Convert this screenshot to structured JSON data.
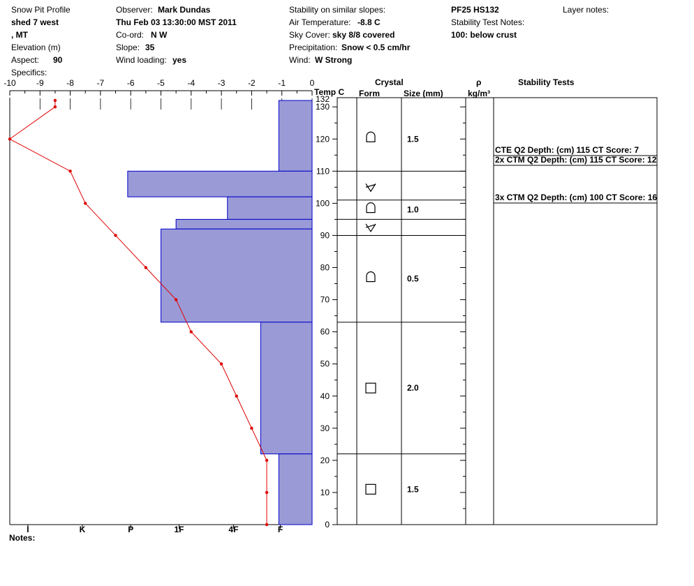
{
  "header": {
    "title": "Snow Pit Profile",
    "location_line1": "shed 7 west",
    "location_line2": ", MT",
    "elevation_label": "Elevation (m)",
    "aspect_label": "Aspect:",
    "aspect_value": "90",
    "specifics_label": "Specifics:",
    "observer_label": "Observer:",
    "observer_value": "Mark Dundas",
    "datetime": "Thu Feb 03 13:30:00 MST 2011",
    "coord_label": "Co-ord:",
    "coord_value": "N  W",
    "slope_label": "Slope:",
    "slope_value": "35",
    "wind_loading_label": "Wind loading:",
    "wind_loading_value": "yes",
    "stability_similar_label": "Stability on similar slopes:",
    "air_temp_label": "Air Temperature:",
    "air_temp_value": "-8.8 C",
    "sky_label": "Sky Cover:",
    "sky_value": "sky 8/8 covered",
    "precip_label": "Precipitation:",
    "precip_value": "Snow < 0.5 cm/hr",
    "wind_label": "Wind:",
    "wind_value": "W Strong",
    "pit_id": "PF25 HS132",
    "stability_notes_label": "Stability Test Notes:",
    "stability_note": "100: below crust",
    "layer_notes_label": "Layer notes:"
  },
  "columns": {
    "temp": "Temp C",
    "crystal": "Crystal",
    "form": "Form",
    "size": "Size (mm)",
    "rho": "ρ",
    "density_unit": "kg/m³",
    "stability_tests": "Stability Tests"
  },
  "notes_label": "Notes:",
  "colors": {
    "hardness_fill": "#9a9ad6",
    "hardness_stroke": "#0000cc",
    "temp_line": "#e00000"
  },
  "chart_data": {
    "type": "snow-profile",
    "temp_axis": {
      "ticks": [
        "-10",
        "-9",
        "-8",
        "-7",
        "-6",
        "-5",
        "-4",
        "-3",
        "-2",
        "-1",
        "0"
      ],
      "range": [
        -10,
        0
      ]
    },
    "depth_axis": {
      "range": [
        0,
        132
      ],
      "tick_labels": [
        "0",
        "10",
        "20",
        "30",
        "40",
        "50",
        "60",
        "70",
        "80",
        "90",
        "100",
        "110",
        "120",
        "130",
        "132"
      ]
    },
    "hardness_axis": {
      "labels": [
        "I",
        "K",
        "P",
        "1F",
        "4F",
        "F"
      ]
    },
    "temperature_profile": [
      {
        "depth": 132,
        "temp": -8.5
      },
      {
        "depth": 130,
        "temp": -8.5
      },
      {
        "depth": 120,
        "temp": -10
      },
      {
        "depth": 110,
        "temp": -8
      },
      {
        "depth": 100,
        "temp": -7.5
      },
      {
        "depth": 90,
        "temp": -6.5
      },
      {
        "depth": 80,
        "temp": -5.5
      },
      {
        "depth": 70,
        "temp": -4.5
      },
      {
        "depth": 60,
        "temp": -4
      },
      {
        "depth": 50,
        "temp": -3
      },
      {
        "depth": 40,
        "temp": -2.5
      },
      {
        "depth": 30,
        "temp": -2
      },
      {
        "depth": 20,
        "temp": -1.5
      },
      {
        "depth": 10,
        "temp": -1.5
      },
      {
        "depth": 0,
        "temp": -1.5
      }
    ],
    "hardness_layers": [
      {
        "bottom": 110,
        "top": 132,
        "temp_extent": -1.1
      },
      {
        "bottom": 102,
        "top": 110,
        "temp_extent": -6.1
      },
      {
        "bottom": 95,
        "top": 102,
        "temp_extent": -2.8
      },
      {
        "bottom": 92,
        "top": 95,
        "temp_extent": -4.5
      },
      {
        "bottom": 63,
        "top": 92,
        "temp_extent": -5.0
      },
      {
        "bottom": 22,
        "top": 63,
        "temp_extent": -1.7
      },
      {
        "bottom": 0,
        "top": 22,
        "temp_extent": -1.1
      }
    ],
    "crystal_boundaries": [
      110,
      101,
      95,
      90,
      63,
      22
    ],
    "crystal_layers": [
      {
        "depth": 120,
        "form": "rounded-grains",
        "size": "1.5"
      },
      {
        "depth": 105,
        "form": "surface-hoar",
        "size": ""
      },
      {
        "depth": 98,
        "form": "rounded-grains",
        "size": "1.0"
      },
      {
        "depth": 92.5,
        "form": "surface-hoar",
        "size": ""
      },
      {
        "depth": 76.5,
        "form": "rounded-grains",
        "size": "0.5"
      },
      {
        "depth": 42.5,
        "form": "faceted-crystals",
        "size": "2.0"
      },
      {
        "depth": 11,
        "form": "faceted-crystals",
        "size": "1.5"
      }
    ],
    "stability_tests": [
      {
        "label": "CTE Q2 Depth: (cm) 115 CT Score: 7",
        "depth": 115
      },
      {
        "label": "2x CTM Q2 Depth: (cm) 115 CT Score: 12",
        "depth": 115
      },
      {
        "label": "3x CTM Q2 Depth: (cm) 100 CT Score: 16",
        "depth": 100
      }
    ]
  }
}
